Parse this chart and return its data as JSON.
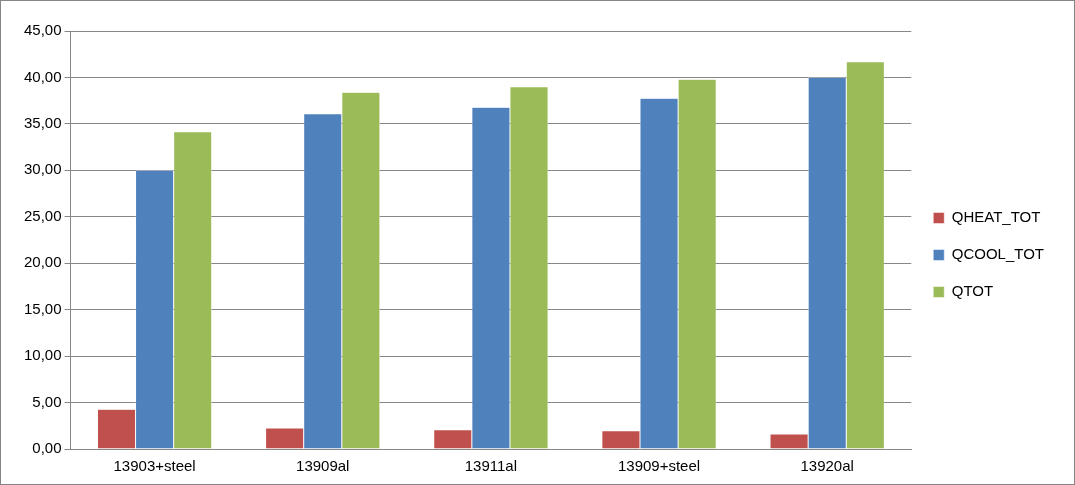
{
  "chart_data": {
    "type": "bar",
    "categories": [
      "13903+steel",
      "13909al",
      "13911al",
      "13909+steel",
      "13920al"
    ],
    "series": [
      {
        "name": "QHEAT_TOT",
        "color": "#c0504d",
        "values": [
          4.29,
          2.26,
          2.08,
          1.96,
          1.61
        ]
      },
      {
        "name": "QCOOL_TOT",
        "color": "#4f81bd",
        "values": [
          30.0,
          36.08,
          36.8,
          37.75,
          40.0
        ]
      },
      {
        "name": "QTOT",
        "color": "#9bbb59",
        "values": [
          34.16,
          38.41,
          39.0,
          39.8,
          41.7
        ]
      }
    ],
    "ylim": [
      0,
      45
    ],
    "yticks": [
      {
        "value": 0,
        "label": "0,00"
      },
      {
        "value": 5,
        "label": "5,00"
      },
      {
        "value": 10,
        "label": "10,00"
      },
      {
        "value": 15,
        "label": "15,00"
      },
      {
        "value": 20,
        "label": "20,00"
      },
      {
        "value": 25,
        "label": "25,00"
      },
      {
        "value": 30,
        "label": "30,00"
      },
      {
        "value": 35,
        "label": "35,00"
      },
      {
        "value": 40,
        "label": "40,00"
      },
      {
        "value": 45,
        "label": "45,00"
      }
    ],
    "grid": "y",
    "legend": "right"
  }
}
